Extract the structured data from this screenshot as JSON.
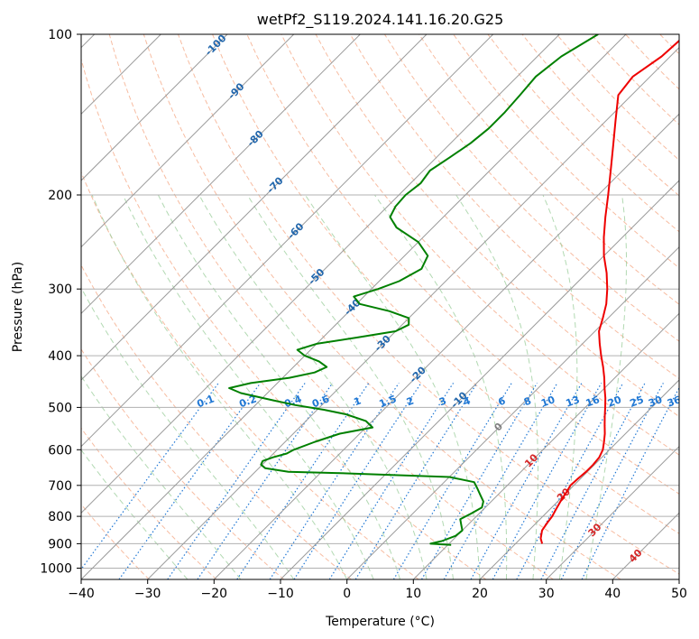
{
  "chart_data": {
    "type": "line",
    "title": "wetPf2_S119.2024.141.16.20.G25",
    "xlabel": "Temperature (°C)",
    "ylabel": "Pressure (hPa)",
    "xlim": [
      -40,
      50
    ],
    "ylim": [
      1050,
      100
    ],
    "y_scale": "log",
    "skew_degrees": 45,
    "grid": true,
    "x_ticks": [
      "−40",
      "−30",
      "−20",
      "−10",
      "0",
      "10",
      "20",
      "30",
      "40",
      "50"
    ],
    "x_tick_values": [
      -40,
      -30,
      -20,
      -10,
      0,
      10,
      20,
      30,
      40,
      50
    ],
    "y_ticks": [
      "100",
      "200",
      "300",
      "400",
      "500",
      "600",
      "700",
      "800",
      "900",
      "1000"
    ],
    "y_tick_values": [
      100,
      200,
      300,
      400,
      500,
      600,
      700,
      800,
      900,
      1000
    ],
    "colors": {
      "temperature": "#ee0000",
      "dewpoint": "#008000",
      "dry_adiabat": "#f4a582",
      "moist_adiabat": "#9fd09f",
      "mixing_ratio": "#1f77d4",
      "isotherm": "#9a9a9a",
      "isobar": "#b0b0b0",
      "isotherm_label_cold": "#2166ac",
      "isotherm_label_warm": "#d62728",
      "zero_label": "#808080"
    },
    "series": [
      {
        "key": "temperature",
        "points": [
          [
            900,
            24.0
          ],
          [
            880,
            23.0
          ],
          [
            850,
            22.0
          ],
          [
            820,
            21.6
          ],
          [
            800,
            21.4
          ],
          [
            780,
            21.0
          ],
          [
            750,
            20.4
          ],
          [
            720,
            19.9
          ],
          [
            700,
            19.5
          ],
          [
            680,
            19.6
          ],
          [
            660,
            19.8
          ],
          [
            640,
            19.8
          ],
          [
            620,
            19.6
          ],
          [
            600,
            19.0
          ],
          [
            580,
            18.0
          ],
          [
            560,
            16.9
          ],
          [
            540,
            15.6
          ],
          [
            520,
            14.3
          ],
          [
            500,
            13.0
          ],
          [
            480,
            11.6
          ],
          [
            460,
            10.0
          ],
          [
            440,
            8.4
          ],
          [
            420,
            6.6
          ],
          [
            400,
            4.6
          ],
          [
            380,
            2.6
          ],
          [
            360,
            0.6
          ],
          [
            340,
            -0.8
          ],
          [
            320,
            -2.4
          ],
          [
            300,
            -4.5
          ],
          [
            280,
            -7.0
          ],
          [
            260,
            -10.0
          ],
          [
            240,
            -12.8
          ],
          [
            220,
            -15.6
          ],
          [
            200,
            -18.5
          ],
          [
            180,
            -21.8
          ],
          [
            160,
            -25.5
          ],
          [
            145,
            -28.6
          ],
          [
            130,
            -32.0
          ],
          [
            120,
            -32.6
          ],
          [
            110,
            -31.3
          ],
          [
            100,
            -30.9
          ]
        ]
      },
      {
        "key": "dewpoint",
        "points": [
          [
            905,
            10.5
          ],
          [
            900,
            7.2
          ],
          [
            890,
            8.5
          ],
          [
            870,
            9.8
          ],
          [
            850,
            10.0
          ],
          [
            830,
            9.0
          ],
          [
            810,
            8.0
          ],
          [
            790,
            8.8
          ],
          [
            770,
            9.5
          ],
          [
            750,
            8.8
          ],
          [
            730,
            7.4
          ],
          [
            710,
            6.0
          ],
          [
            690,
            4.5
          ],
          [
            675,
            0.0
          ],
          [
            665,
            -15.0
          ],
          [
            660,
            -25.0
          ],
          [
            650,
            -29.0
          ],
          [
            640,
            -30.2
          ],
          [
            630,
            -30.5
          ],
          [
            620,
            -29.5
          ],
          [
            610,
            -28.0
          ],
          [
            600,
            -27.5
          ],
          [
            580,
            -25.5
          ],
          [
            560,
            -23.0
          ],
          [
            545,
            -19.0
          ],
          [
            530,
            -21.0
          ],
          [
            515,
            -25.0
          ],
          [
            505,
            -29.0
          ],
          [
            495,
            -34.0
          ],
          [
            485,
            -38.0
          ],
          [
            470,
            -44.0
          ],
          [
            460,
            -46.5
          ],
          [
            450,
            -44.0
          ],
          [
            440,
            -39.0
          ],
          [
            430,
            -36.0
          ],
          [
            420,
            -35.0
          ],
          [
            410,
            -37.0
          ],
          [
            400,
            -40.0
          ],
          [
            390,
            -42.0
          ],
          [
            380,
            -40.0
          ],
          [
            370,
            -35.0
          ],
          [
            360,
            -30.0
          ],
          [
            350,
            -29.0
          ],
          [
            340,
            -30.0
          ],
          [
            330,
            -34.0
          ],
          [
            320,
            -39.5
          ],
          [
            310,
            -41.5
          ],
          [
            300,
            -39.0
          ],
          [
            290,
            -37.0
          ],
          [
            275,
            -35.5
          ],
          [
            260,
            -36.5
          ],
          [
            245,
            -40.0
          ],
          [
            230,
            -45.5
          ],
          [
            220,
            -48.0
          ],
          [
            210,
            -48.8
          ],
          [
            200,
            -49.0
          ],
          [
            190,
            -48.5
          ],
          [
            180,
            -49.0
          ],
          [
            170,
            -48.0
          ],
          [
            160,
            -47.0
          ],
          [
            150,
            -46.5
          ],
          [
            140,
            -46.5
          ],
          [
            130,
            -46.8
          ],
          [
            120,
            -47.2
          ],
          [
            110,
            -46.4
          ],
          [
            100,
            -44.2
          ]
        ]
      }
    ],
    "isotherm_labels": [
      {
        "t": -100,
        "p": 105,
        "text": "-100"
      },
      {
        "t": -90,
        "p": 128,
        "text": "-90"
      },
      {
        "t": -80,
        "p": 157,
        "text": "-80"
      },
      {
        "t": -70,
        "p": 192,
        "text": "-70"
      },
      {
        "t": -60,
        "p": 234,
        "text": "-60"
      },
      {
        "t": -50,
        "p": 285,
        "text": "-50"
      },
      {
        "t": -40,
        "p": 325,
        "text": "-40"
      },
      {
        "t": -30,
        "p": 380,
        "text": "-30"
      },
      {
        "t": -20,
        "p": 435,
        "text": "-20"
      },
      {
        "t": -10,
        "p": 485,
        "text": "-10"
      },
      {
        "t": 0,
        "p": 545,
        "text": "0"
      },
      {
        "t": 10,
        "p": 630,
        "text": "10"
      },
      {
        "t": 20,
        "p": 730,
        "text": "20"
      },
      {
        "t": 30,
        "p": 850,
        "text": "30"
      },
      {
        "t": 40,
        "p": 950,
        "text": "40"
      }
    ],
    "mixing_ratio_labels": [
      "0.1",
      "0.2",
      "0.4",
      "0.6",
      "1",
      "1.5",
      "2",
      "3",
      "4",
      "6",
      "8",
      "10",
      "13",
      "16",
      "20",
      "25",
      "30",
      "36"
    ],
    "mixing_ratio_values": [
      0.1,
      0.2,
      0.4,
      0.6,
      1,
      1.5,
      2,
      3,
      4,
      6,
      8,
      10,
      13,
      16,
      20,
      25,
      30,
      36
    ],
    "mixing_ratio_label_pressure": 500
  }
}
